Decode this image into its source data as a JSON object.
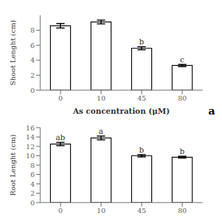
{
  "chart_data": [
    {
      "type": "bar",
      "categories": [
        "0",
        "10",
        "45",
        "80"
      ],
      "values": [
        8.6,
        9.1,
        5.6,
        3.3
      ],
      "errors": [
        0.3,
        0.25,
        0.2,
        0.15
      ],
      "letters": [
        null,
        null,
        "b",
        "c"
      ],
      "ylabel": "Shoot Lenght (cm)",
      "xlabel": "As concentration (μM)",
      "panel_label": "a",
      "color": "#ffffff",
      "ylim": [
        0,
        10
      ],
      "yticks": [
        0,
        2,
        4,
        6,
        8
      ]
    },
    {
      "type": "bar",
      "categories": [
        "0",
        "10",
        "45",
        "80"
      ],
      "values": [
        12.5,
        13.8,
        10.0,
        9.7
      ],
      "errors": [
        0.35,
        0.4,
        0.25,
        0.2
      ],
      "letters": [
        "ab",
        "a",
        "b",
        "b"
      ],
      "ylabel": "Root Lenght (cm)",
      "color": "#ffffff",
      "ylim": [
        0,
        16
      ],
      "yticks": [
        0,
        2,
        4,
        6,
        8,
        10,
        12,
        14,
        16
      ]
    }
  ]
}
